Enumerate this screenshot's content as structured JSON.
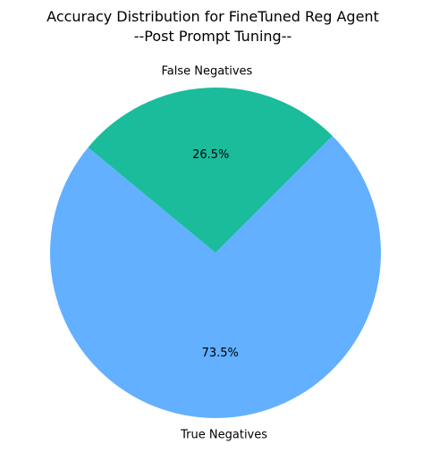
{
  "chart_data": {
    "type": "pie",
    "title": "Accuracy Distribution for FineTuned Reg Agent",
    "subtitle": "--Post Prompt Tuning--",
    "slices": [
      {
        "label": "False Negatives",
        "value": 26.5,
        "pct_label": "26.5%",
        "color": "#1abc9c"
      },
      {
        "label": "True Negatives",
        "value": 73.5,
        "pct_label": "73.5%",
        "color": "#62b0ff"
      }
    ],
    "start_angle_deg": 45,
    "legend": "none"
  }
}
